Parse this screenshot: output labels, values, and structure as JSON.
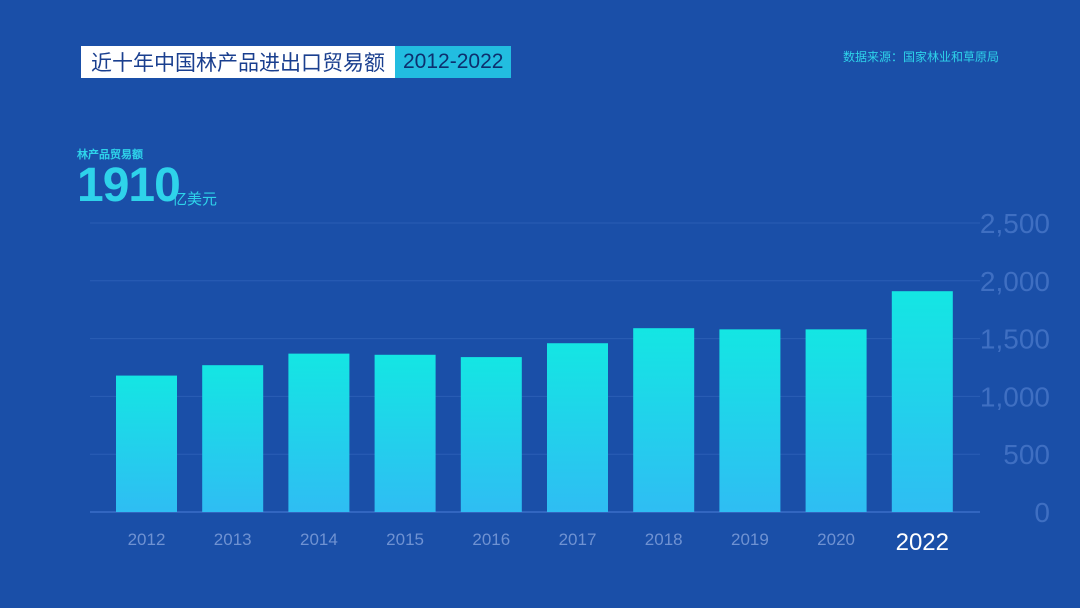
{
  "header": {
    "title": "近十年中国林产品进出口贸易额",
    "years": "2012-2022",
    "source": "数据来源：国家林业和草原局"
  },
  "kpi": {
    "label": "林产品贸易额",
    "value": "1910",
    "unit": "亿美元"
  },
  "colors": {
    "background": "#1a4fa8",
    "bar_top": "#14e6e3",
    "bar_bottom": "#2fbdf3",
    "accent": "#2ed3ea",
    "highlight_label": "#ffffff"
  },
  "chart_data": {
    "type": "bar",
    "categories": [
      "2012",
      "2013",
      "2014",
      "2015",
      "2016",
      "2017",
      "2018",
      "2019",
      "2020",
      "2022"
    ],
    "values": [
      1180,
      1270,
      1370,
      1360,
      1340,
      1460,
      1590,
      1580,
      1580,
      1910
    ],
    "highlight": "2022",
    "ylim": [
      0,
      2500
    ],
    "yticks": [
      0,
      500,
      1000,
      1500,
      2000,
      2500
    ],
    "ytick_labels": [
      "0",
      "500",
      "1,000",
      "1,500",
      "2,000",
      "2,500"
    ],
    "ytick_position": "right",
    "grid": true,
    "xlabel": "",
    "ylabel": ""
  }
}
